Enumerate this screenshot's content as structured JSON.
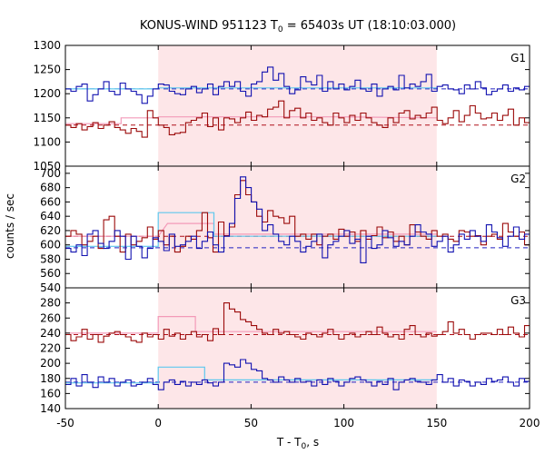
{
  "chart_data": {
    "type": "line",
    "title": "KONUS-WIND 951123 T",
    "title_sub": "0",
    "title_rest": " = 65403s UT (18:10:03.000)",
    "xlabel": "T - T",
    "xlabel_sub": "0",
    "xlabel_rest": ", s",
    "ylabel": "counts / sec",
    "xlim": [
      -50,
      200
    ],
    "x_ticks": [
      -50,
      0,
      50,
      100,
      150,
      200
    ],
    "highlight_interval": [
      0,
      150
    ],
    "grid": false,
    "colors": {
      "highlight": "#fde6e8",
      "red_series": "#9b0a0a",
      "blue_series": "#1212b0",
      "red_fit": "#f39ab8",
      "blue_fit": "#5ec8ee",
      "red_bg": "#b0101a",
      "blue_bg": "#2020c0"
    },
    "panels": [
      {
        "label": "G1",
        "ylim": [
          1050,
          1300
        ],
        "y_ticks": [
          1050,
          1100,
          1150,
          1200,
          1250,
          1300
        ],
        "series": [
          {
            "color_key": "red_series",
            "x_start": -50,
            "bin": 2.944,
            "values": [
              1135,
              1130,
              1138,
              1125,
              1132,
              1140,
              1128,
              1135,
              1142,
              1130,
              1125,
              1118,
              1128,
              1122,
              1110,
              1165,
              1150,
              1135,
              1130,
              1115,
              1118,
              1120,
              1140,
              1145,
              1150,
              1160,
              1132,
              1150,
              1125,
              1150,
              1148,
              1140,
              1150,
              1162,
              1145,
              1155,
              1152,
              1168,
              1172,
              1185,
              1150,
              1165,
              1170,
              1150,
              1160,
              1145,
              1150,
              1140,
              1135,
              1160,
              1150,
              1140,
              1155,
              1145,
              1160,
              1150,
              1140,
              1135,
              1130,
              1150,
              1140,
              1160,
              1165,
              1148,
              1155,
              1150,
              1160,
              1172,
              1145,
              1138,
              1150,
              1165,
              1142,
              1155,
              1175,
              1160,
              1148,
              1150,
              1160,
              1145,
              1155,
              1168,
              1135,
              1150,
              1140,
              1112,
              1148,
              1152,
              1158,
              1150,
              1110,
              1145,
              1125,
              1150,
              1138,
              1142,
              1135,
              1152,
              1148,
              1145,
              1138
            ]
          },
          {
            "color_key": "blue_series",
            "x_start": -50,
            "bin": 2.944,
            "values": [
              1210,
              1205,
              1215,
              1220,
              1185,
              1198,
              1210,
              1225,
              1205,
              1198,
              1222,
              1210,
              1205,
              1198,
              1180,
              1195,
              1210,
              1220,
              1218,
              1205,
              1200,
              1198,
              1210,
              1215,
              1202,
              1210,
              1220,
              1198,
              1215,
              1225,
              1215,
              1225,
              1205,
              1195,
              1220,
              1225,
              1245,
              1255,
              1228,
              1242,
              1215,
              1200,
              1208,
              1235,
              1225,
              1218,
              1238,
              1205,
              1225,
              1210,
              1220,
              1208,
              1215,
              1228,
              1210,
              1205,
              1220,
              1195,
              1210,
              1215,
              1208,
              1238,
              1212,
              1220,
              1215,
              1225,
              1240,
              1205,
              1215,
              1218,
              1210,
              1208,
              1200,
              1218,
              1210,
              1225,
              1212,
              1198,
              1205,
              1210,
              1218,
              1205,
              1212,
              1208,
              1215,
              1200,
              1210,
              1205,
              1212,
              1208,
              1215,
              1200,
              1225,
              1218,
              1210,
              1205,
              1238,
              1208,
              1215,
              1225,
              1210
            ]
          }
        ],
        "fits": [
          {
            "color_key": "red_fit",
            "points": [
              [
                -50,
                1138
              ],
              [
                -20,
                1138
              ],
              [
                -20,
                1150
              ],
              [
                0,
                1150
              ],
              [
                0,
                1152
              ],
              [
                30,
                1152
              ],
              [
                30,
                1152
              ],
              [
                100,
                1152
              ],
              [
                150,
                1150
              ]
            ]
          },
          {
            "color_key": "blue_fit",
            "points": [
              [
                -50,
                1210
              ],
              [
                0,
                1210
              ],
              [
                0,
                1212
              ],
              [
                150,
                1212
              ]
            ]
          }
        ],
        "backgrounds": [
          {
            "color_key": "red_bg",
            "y": 1135
          },
          {
            "color_key": "blue_bg",
            "y": 1210
          }
        ]
      },
      {
        "label": "G2",
        "ylim": [
          540,
          710
        ],
        "y_ticks": [
          540,
          560,
          580,
          600,
          620,
          640,
          660,
          680,
          700
        ],
        "series": [
          {
            "color_key": "red_series",
            "x_start": -50,
            "bin": 2.944,
            "values": [
              612,
              620,
              615,
              600,
              605,
              612,
              595,
              635,
              640,
              612,
              590,
              615,
              600,
              605,
              610,
              625,
              608,
              620,
              600,
              612,
              590,
              598,
              612,
              608,
              620,
              645,
              610,
              590,
              632,
              613,
              625,
              670,
              690,
              670,
              660,
              640,
              632,
              648,
              640,
              638,
              630,
              640,
              612,
              615,
              608,
              615,
              600,
              612,
              615,
              608,
              622,
              612,
              618,
              605,
              620,
              608,
              613,
              625,
              610,
              618,
              605,
              612,
              600,
              628,
              618,
              612,
              608,
              620,
              612,
              615,
              608,
              605,
              620,
              618,
              612,
              613,
              600,
              612,
              615,
              608,
              630,
              618,
              612,
              618,
              600,
              612,
              620,
              608,
              612,
              625,
              615,
              612,
              600,
              605,
              612,
              620,
              608,
              615,
              612,
              625,
              615
            ]
          },
          {
            "color_key": "blue_series",
            "x_start": -50,
            "bin": 2.944,
            "values": [
              595,
              590,
              600,
              585,
              615,
              620,
              602,
              595,
              605,
              620,
              612,
              580,
              612,
              598,
              582,
              595,
              610,
              605,
              592,
              615,
              598,
              600,
              605,
              612,
              595,
              605,
              618,
              600,
              590,
              612,
              630,
              665,
              695,
              680,
              660,
              650,
              620,
              628,
              615,
              605,
              600,
              612,
              605,
              590,
              598,
              605,
              615,
              582,
              600,
              605,
              612,
              620,
              602,
              608,
              575,
              612,
              595,
              600,
              620,
              610,
              598,
              605,
              600,
              612,
              628,
              618,
              615,
              598,
              605,
              612,
              590,
              600,
              615,
              608,
              620,
              612,
              605,
              628,
              618,
              610,
              598,
              612,
              625,
              608,
              615,
              630,
              605,
              612,
              620,
              600,
              605,
              625,
              608,
              602,
              615,
              605,
              612,
              600,
              590,
              598,
              612
            ]
          }
        ],
        "fits": [
          {
            "color_key": "red_fit",
            "points": [
              [
                -50,
                612
              ],
              [
                -2,
                612
              ],
              [
                0,
                612
              ],
              [
                5,
                630
              ],
              [
                30,
                630
              ],
              [
                30,
                615
              ],
              [
                150,
                615
              ]
            ]
          },
          {
            "color_key": "blue_fit",
            "points": [
              [
                -50,
                598
              ],
              [
                0,
                598
              ],
              [
                0,
                645
              ],
              [
                30,
                645
              ],
              [
                30,
                612
              ],
              [
                150,
                612
              ]
            ]
          }
        ],
        "backgrounds": [
          {
            "color_key": "red_bg",
            "y": 612
          },
          {
            "color_key": "blue_bg",
            "y": 596
          }
        ]
      },
      {
        "label": "G3",
        "ylim": [
          140,
          300
        ],
        "y_ticks": [
          140,
          160,
          180,
          200,
          220,
          240,
          260,
          280
        ],
        "series": [
          {
            "color_key": "red_series",
            "x_start": -50,
            "bin": 2.944,
            "values": [
              238,
              230,
              235,
              245,
              232,
              238,
              228,
              236,
              240,
              242,
              238,
              235,
              230,
              228,
              240,
              235,
              238,
              232,
              245,
              236,
              240,
              232,
              238,
              242,
              235,
              238,
              230,
              246,
              238,
              280,
              272,
              268,
              258,
              255,
              250,
              245,
              240,
              238,
              245,
              240,
              242,
              238,
              235,
              232,
              240,
              238,
              235,
              240,
              245,
              238,
              232,
              238,
              240,
              235,
              238,
              242,
              238,
              248,
              240,
              235,
              238,
              232,
              245,
              250,
              238,
              235,
              240,
              236,
              238,
              242,
              255,
              240,
              245,
              238,
              232,
              238,
              240,
              240,
              238,
              245,
              238,
              248,
              240,
              235,
              250,
              242,
              238,
              252,
              238,
              245,
              260,
              250,
              235,
              240,
              235,
              238,
              242,
              240,
              236,
              238,
              240
            ]
          },
          {
            "color_key": "blue_series",
            "x_start": -50,
            "bin": 2.944,
            "values": [
              172,
              180,
              170,
              185,
              175,
              168,
              182,
              175,
              180,
              170,
              175,
              178,
              170,
              172,
              175,
              180,
              172,
              165,
              175,
              178,
              172,
              176,
              170,
              175,
              172,
              178,
              174,
              170,
              175,
              200,
              198,
              195,
              205,
              200,
              192,
              190,
              180,
              178,
              175,
              182,
              178,
              175,
              180,
              175,
              176,
              170,
              178,
              172,
              180,
              176,
              170,
              175,
              180,
              182,
              178,
              175,
              170,
              176,
              172,
              180,
              165,
              175,
              178,
              180,
              176,
              175,
              172,
              178,
              185,
              175,
              180,
              170,
              178,
              176,
              170,
              175,
              172,
              180,
              176,
              178,
              182,
              175,
              170,
              180,
              176,
              172,
              175,
              180,
              178,
              172,
              176,
              170,
              175,
              180,
              178,
              185,
              176,
              172,
              178,
              175,
              170
            ]
          }
        ],
        "fits": [
          {
            "color_key": "red_fit",
            "points": [
              [
                -50,
                240
              ],
              [
                0,
                240
              ],
              [
                0,
                262
              ],
              [
                20,
                262
              ],
              [
                20,
                242
              ],
              [
                150,
                242
              ]
            ]
          },
          {
            "color_key": "blue_fit",
            "points": [
              [
                -50,
                174
              ],
              [
                0,
                174
              ],
              [
                0,
                195
              ],
              [
                25,
                195
              ],
              [
                25,
                178
              ],
              [
                150,
                178
              ]
            ]
          }
        ],
        "backgrounds": [
          {
            "color_key": "red_bg",
            "y": 238
          },
          {
            "color_key": "blue_bg",
            "y": 175
          }
        ]
      }
    ]
  }
}
